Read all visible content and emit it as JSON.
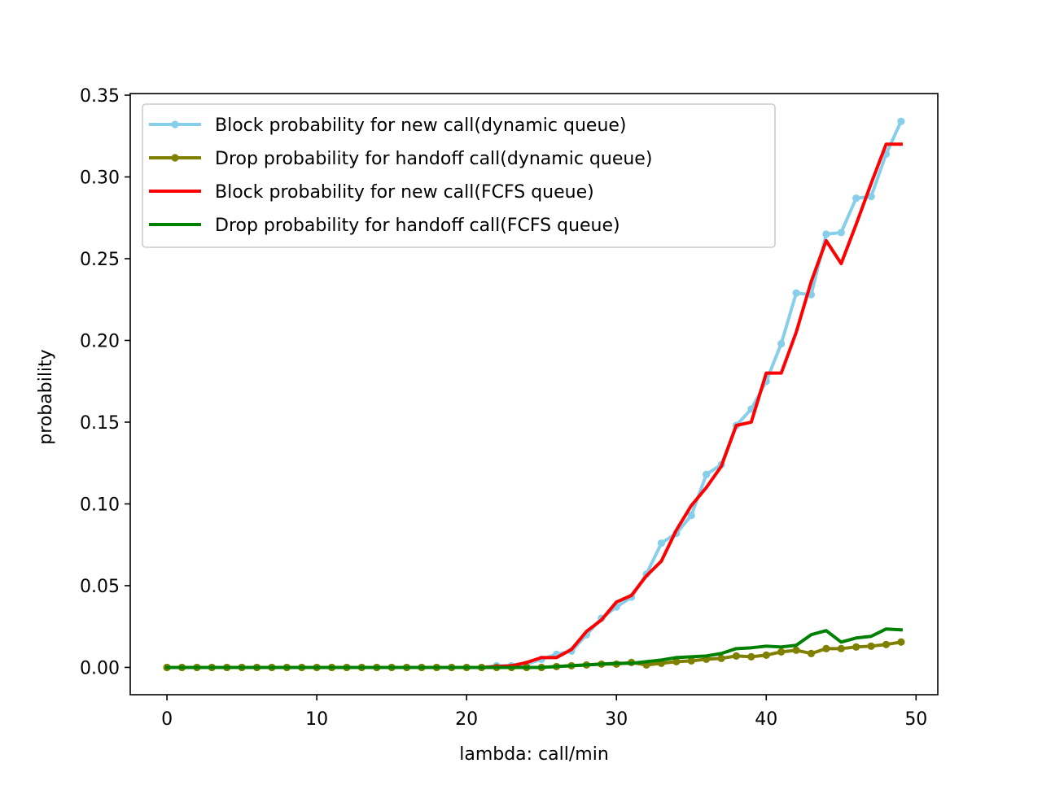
{
  "chart_data": {
    "type": "line",
    "xlabel": "lambda: call/min",
    "ylabel": "probability",
    "xlim": [
      -2.45,
      51.45
    ],
    "ylim": [
      -0.0167,
      0.351
    ],
    "xticks": [
      0,
      10,
      20,
      30,
      40,
      50
    ],
    "xtick_labels": [
      "0",
      "10",
      "20",
      "30",
      "40",
      "50"
    ],
    "yticks": [
      0.0,
      0.05,
      0.1,
      0.15,
      0.2,
      0.25,
      0.3,
      0.35
    ],
    "ytick_labels": [
      "0.00",
      "0.05",
      "0.10",
      "0.15",
      "0.20",
      "0.25",
      "0.30",
      "0.35"
    ],
    "grid": false,
    "legend_position": "top-left",
    "x": [
      0,
      1,
      2,
      3,
      4,
      5,
      6,
      7,
      8,
      9,
      10,
      11,
      12,
      13,
      14,
      15,
      16,
      17,
      18,
      19,
      20,
      21,
      22,
      23,
      24,
      25,
      26,
      27,
      28,
      29,
      30,
      31,
      32,
      33,
      34,
      35,
      36,
      37,
      38,
      39,
      40,
      41,
      42,
      43,
      44,
      45,
      46,
      47,
      48,
      49
    ],
    "series": [
      {
        "name": "Block probability for new call(dynamic queue)",
        "color": "#87ceeb",
        "marker": "dot",
        "values": [
          0,
          0,
          0,
          0,
          0,
          0,
          0,
          0,
          0,
          0,
          0,
          0,
          0,
          0,
          0,
          0,
          0,
          0,
          0,
          0,
          0,
          0,
          0.001,
          0.001,
          0.002,
          0.005,
          0.008,
          0.01,
          0.02,
          0.03,
          0.037,
          0.043,
          0.057,
          0.076,
          0.082,
          0.093,
          0.118,
          0.124,
          0.148,
          0.158,
          0.175,
          0.198,
          0.229,
          0.228,
          0.265,
          0.266,
          0.287,
          0.288,
          0.314,
          0.334
        ]
      },
      {
        "name": "Drop probability for handoff call(dynamic queue)",
        "color": "#808000",
        "marker": "dot",
        "values": [
          0,
          0,
          0,
          0,
          0,
          0,
          0,
          0,
          0,
          0,
          0,
          0,
          0,
          0,
          0,
          0,
          0,
          0,
          0,
          0,
          0,
          0,
          0,
          0,
          0,
          0,
          0.0005,
          0.001,
          0.0015,
          0.002,
          0.002,
          0.003,
          0.0015,
          0.0025,
          0.0035,
          0.004,
          0.005,
          0.0055,
          0.007,
          0.0065,
          0.0075,
          0.0095,
          0.0105,
          0.0085,
          0.0115,
          0.0115,
          0.0125,
          0.013,
          0.014,
          0.0155
        ]
      },
      {
        "name": "Block probability for new call(FCFS queue)",
        "color": "#ff0000",
        "marker": "none",
        "values": [
          0,
          0,
          0,
          0,
          0,
          0,
          0,
          0,
          0,
          0,
          0,
          0,
          0,
          0,
          0,
          0,
          0,
          0,
          0,
          0,
          0,
          0,
          0.0005,
          0.001,
          0.003,
          0.006,
          0.006,
          0.011,
          0.022,
          0.029,
          0.04,
          0.044,
          0.056,
          0.065,
          0.084,
          0.099,
          0.11,
          0.123,
          0.148,
          0.15,
          0.18,
          0.18,
          0.205,
          0.236,
          0.261,
          0.247,
          0.271,
          0.296,
          0.32,
          0.32
        ]
      },
      {
        "name": "Drop probability for handoff call(FCFS queue)",
        "color": "#008000",
        "marker": "none",
        "values": [
          0,
          0,
          0,
          0,
          0,
          0,
          0,
          0,
          0,
          0,
          0,
          0,
          0,
          0,
          0,
          0,
          0,
          0,
          0,
          0,
          0,
          0,
          0,
          0,
          0,
          0,
          0.0005,
          0.001,
          0.0015,
          0.002,
          0.0025,
          0.0025,
          0.0035,
          0.0045,
          0.006,
          0.0065,
          0.007,
          0.0085,
          0.0115,
          0.012,
          0.013,
          0.0125,
          0.0135,
          0.02,
          0.0225,
          0.0155,
          0.018,
          0.019,
          0.0235,
          0.023
        ]
      }
    ]
  }
}
